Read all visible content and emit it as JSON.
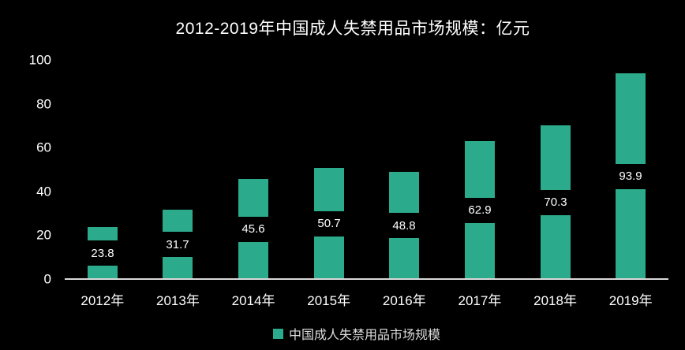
{
  "chart_data": {
    "type": "bar",
    "title": "2012-2019年中国成人失禁用品市场规模：亿元",
    "categories": [
      "2012年",
      "2013年",
      "2014年",
      "2015年",
      "2016年",
      "2017年",
      "2018年",
      "2019年"
    ],
    "values": [
      23.8,
      31.7,
      45.6,
      50.7,
      48.8,
      62.9,
      70.3,
      93.9
    ],
    "series_name": "中国成人失禁用品市场规模",
    "ylim": [
      0,
      100
    ],
    "yticks": [
      0,
      20,
      40,
      60,
      80,
      100
    ],
    "grid": false,
    "legend_position": "bottom",
    "value_labels": "inside-center-on-black-band",
    "colors": {
      "background": "#000000",
      "bar": "#2BAB8C",
      "axis_line": "#D9D9D9",
      "axis_text": "#FFFFFF",
      "value_label_text": "#FFFFFF",
      "value_label_background": "#000000",
      "legend_text": "#DCDCDC"
    },
    "legend": {
      "label": "中国成人失禁用品市场规模"
    }
  }
}
